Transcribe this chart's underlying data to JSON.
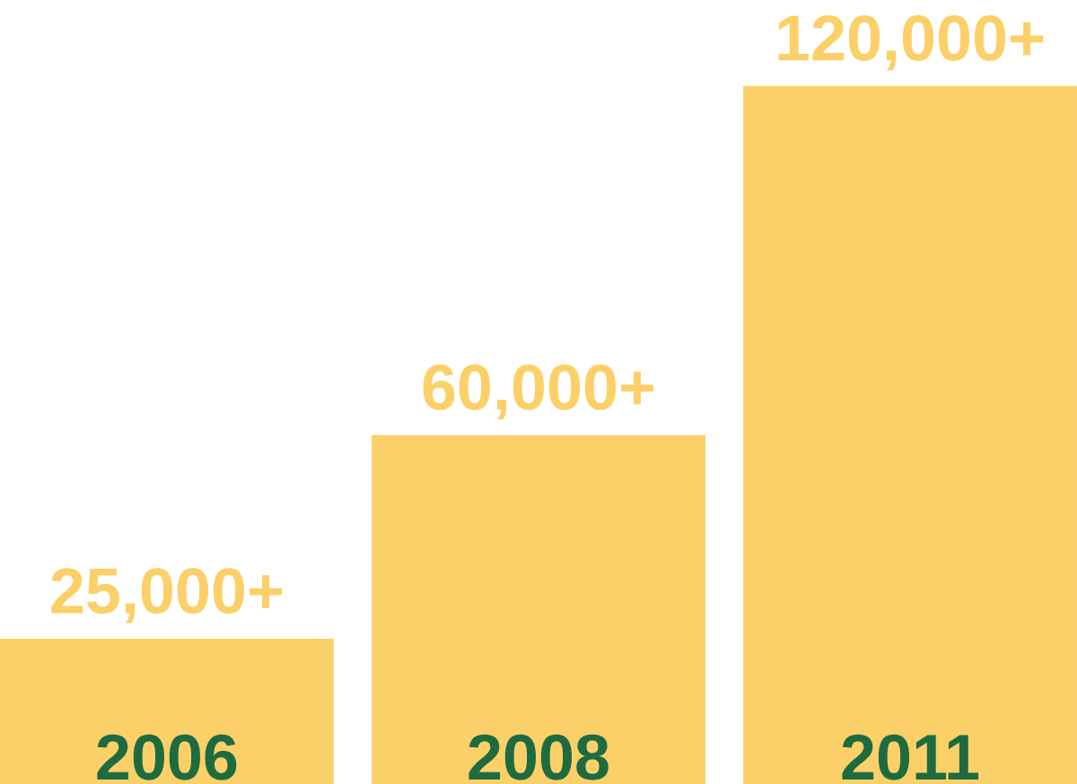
{
  "chart_data": {
    "type": "bar",
    "categories": [
      "2006",
      "2008",
      "2011"
    ],
    "values": [
      25000,
      60000,
      120000
    ],
    "color": "#fcd068",
    "value_labels": [
      "25,000+",
      "60,000+",
      "120,000+"
    ]
  }
}
